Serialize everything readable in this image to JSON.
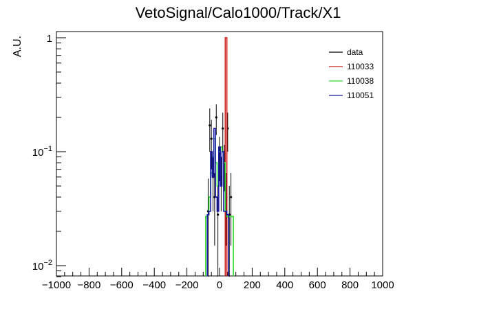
{
  "chart_data": {
    "type": "line",
    "title": "VetoSignal/Calo1000/Track/X1",
    "xlabel": "",
    "ylabel": "A.U.",
    "xlim": [
      -1000,
      1000
    ],
    "ylim": [
      0.008,
      1.1
    ],
    "yscale": "log",
    "grid": false,
    "legend_position": "top-right",
    "x_ticks": [
      -1000,
      -800,
      -600,
      -400,
      -200,
      0,
      200,
      400,
      600,
      800,
      1000
    ],
    "x_tick_labels": [
      "−1000",
      "−800",
      "−600",
      "−400",
      "−200",
      "0",
      "200",
      "400",
      "600",
      "800",
      "1000"
    ],
    "y_tick_labels": [
      {
        "base": "10",
        "exp": "−2",
        "value": 0.01
      },
      {
        "base": "10",
        "exp": "−1",
        "value": 0.1
      },
      {
        "base": "1",
        "exp": "",
        "value": 1
      }
    ],
    "series": [
      {
        "name": "data",
        "color": "#000000",
        "style": "points",
        "x": [
          -70,
          -60,
          -50,
          -40,
          -30,
          -20,
          -10,
          0,
          10,
          20,
          30,
          40,
          50,
          60,
          70
        ],
        "y": [
          0.03,
          0.17,
          0.13,
          0.06,
          0.04,
          0.2,
          0.028,
          0.095,
          0.06,
          0.16,
          0.08,
          0.04,
          0.16,
          0.028,
          0.04
        ],
        "err": [
          0.028,
          0.07,
          0.06,
          0.03,
          0.025,
          0.06,
          0.022,
          0.04,
          0.03,
          0.06,
          0.035,
          0.025,
          0.06,
          0.022,
          0.025
        ]
      },
      {
        "name": "110033",
        "color": "#cc2222",
        "style": "hist",
        "x": [
          40
        ],
        "y": [
          1.0
        ]
      },
      {
        "name": "110038",
        "color": "#33dd33",
        "style": "hist",
        "x": [
          -80,
          -70,
          -60,
          -50,
          -40,
          -30,
          -20,
          -10,
          0,
          10,
          20,
          30,
          40,
          50,
          60,
          70,
          80
        ],
        "y": [
          0.027,
          0.028,
          0.04,
          0.065,
          0.09,
          0.13,
          0.08,
          0.05,
          0.1,
          0.11,
          0.1,
          0.08,
          0.03,
          0.027,
          0.027,
          0.027,
          0.027
        ]
      },
      {
        "name": "110051",
        "color": "#1a1aa8",
        "style": "hist",
        "x": [
          -70,
          -60,
          -50,
          -40,
          -30,
          -20,
          -10,
          0,
          10,
          20,
          30,
          40,
          50
        ],
        "y": [
          0.028,
          0.03,
          0.1,
          0.06,
          0.16,
          0.04,
          0.03,
          0.11,
          0.05,
          0.1,
          0.03,
          0.03,
          0.028
        ]
      }
    ]
  }
}
